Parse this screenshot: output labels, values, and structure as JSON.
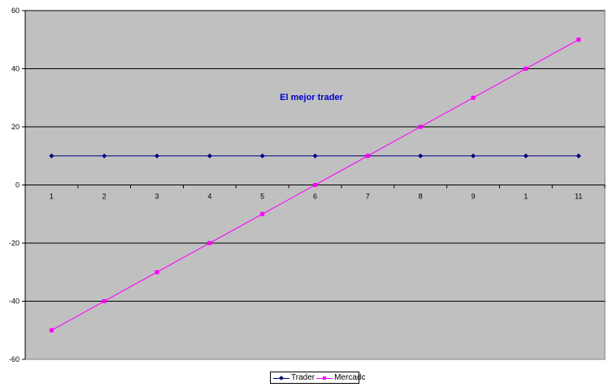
{
  "chart_data": {
    "type": "line",
    "title": "El mejor trader",
    "categories": [
      "1",
      "2",
      "3",
      "4",
      "5",
      "6",
      "7",
      "8",
      "9",
      "1",
      "11"
    ],
    "series": [
      {
        "name": "Trader",
        "values": [
          10,
          10,
          10,
          10,
          10,
          10,
          10,
          10,
          10,
          10,
          10
        ],
        "color": "#000080",
        "marker": "diamond"
      },
      {
        "name": "Mercado",
        "values": [
          -50,
          -40,
          -30,
          -20,
          -10,
          0,
          10,
          20,
          30,
          40,
          50
        ],
        "color": "#FF00FF",
        "marker": "square"
      }
    ],
    "ylim": [
      -60,
      60
    ],
    "yticks": [
      -60,
      -40,
      -20,
      0,
      20,
      40,
      60
    ],
    "grid": true,
    "plot_background": "#C0C0C0",
    "title_color": "#0000CC",
    "legend_position": "bottom",
    "legend_labels": [
      "Trader",
      "Mercadc"
    ]
  }
}
